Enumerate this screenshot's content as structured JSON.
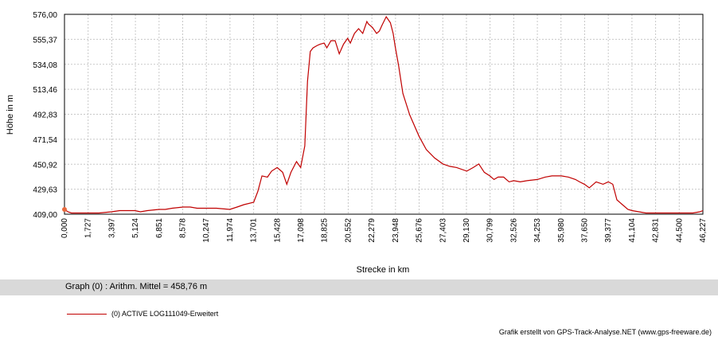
{
  "chart_data": {
    "type": "line",
    "xlabel": "Strecke  in  km",
    "ylabel": "Höhe  in  m",
    "xlim": [
      0,
      46.227
    ],
    "ylim": [
      409,
      576
    ],
    "x_ticks": [
      "0,000",
      "1,727",
      "3,397",
      "5,124",
      "6,851",
      "8,578",
      "10,247",
      "11,974",
      "13,701",
      "15,428",
      "17,098",
      "18,825",
      "20,552",
      "22,279",
      "23,948",
      "25,676",
      "27,403",
      "29,130",
      "30,799",
      "32,526",
      "34,253",
      "35,980",
      "37,650",
      "39,377",
      "41,104",
      "42,831",
      "44,500",
      "46,227"
    ],
    "y_ticks": [
      "576,00",
      "555,37",
      "534,08",
      "513,46",
      "492,83",
      "471,54",
      "450,92",
      "429,63",
      "409,00"
    ],
    "grid": true,
    "series": [
      {
        "name": "(0) ACTIVE LOG111049-Erweitert",
        "color": "#c00000",
        "x": [
          0.0,
          0.25,
          0.5,
          1.0,
          1.7,
          2.5,
          3.4,
          4.0,
          4.5,
          5.1,
          5.5,
          6.0,
          6.85,
          7.3,
          7.8,
          8.6,
          9.1,
          9.6,
          10.25,
          11.0,
          11.97,
          12.5,
          13.0,
          13.7,
          14.0,
          14.3,
          14.7,
          15.0,
          15.4,
          15.8,
          16.1,
          16.4,
          16.8,
          17.1,
          17.4,
          17.6,
          17.8,
          18.0,
          18.3,
          18.5,
          18.8,
          19.0,
          19.3,
          19.6,
          19.9,
          20.2,
          20.5,
          20.7,
          21.0,
          21.3,
          21.6,
          21.9,
          22.0,
          22.3,
          22.6,
          22.8,
          23.0,
          23.3,
          23.6,
          23.8,
          23.95,
          24.2,
          24.5,
          25.0,
          25.68,
          26.2,
          26.8,
          27.4,
          27.9,
          28.4,
          29.13,
          29.6,
          30.0,
          30.4,
          30.8,
          31.1,
          31.4,
          31.8,
          32.2,
          32.53,
          33.0,
          33.5,
          34.25,
          34.8,
          35.3,
          35.98,
          36.5,
          37.0,
          37.3,
          37.65,
          38.0,
          38.5,
          39.0,
          39.38,
          39.7,
          40.0,
          40.4,
          40.8,
          41.1,
          41.6,
          42.1,
          42.83,
          43.5,
          44.5,
          45.5,
          46.0,
          46.227
        ],
        "y": [
          413,
          411,
          410,
          410,
          410,
          410,
          411,
          412,
          412,
          412,
          411,
          412,
          413,
          413,
          414,
          415,
          415,
          414,
          414,
          414,
          413,
          415,
          417,
          419,
          428,
          441,
          440,
          445,
          448,
          444,
          434,
          444,
          453,
          448,
          466,
          520,
          545,
          548,
          550,
          551,
          552,
          548,
          554,
          554,
          543,
          551,
          556,
          552,
          560,
          564,
          560,
          570,
          568,
          565,
          560,
          562,
          567,
          574,
          569,
          560,
          549,
          533,
          510,
          492,
          474,
          463,
          456,
          451,
          449,
          448,
          445,
          448,
          451,
          444,
          441,
          438,
          440,
          440,
          436,
          437,
          436,
          437,
          438,
          440,
          441,
          441,
          440,
          438,
          436,
          434,
          431,
          436,
          434,
          436,
          434,
          421,
          417,
          413,
          412,
          411,
          410,
          410,
          410,
          410,
          410,
          411,
          412
        ]
      }
    ]
  },
  "stats": {
    "text": "Graph (0) :  Arithm. Mittel = 458,76 m"
  },
  "legend": {
    "label": "(0) ACTIVE LOG111049-Erweitert"
  },
  "credit": "Grafik erstellt von GPS-Track-Analyse.NET (www.gps-freeware.de)"
}
